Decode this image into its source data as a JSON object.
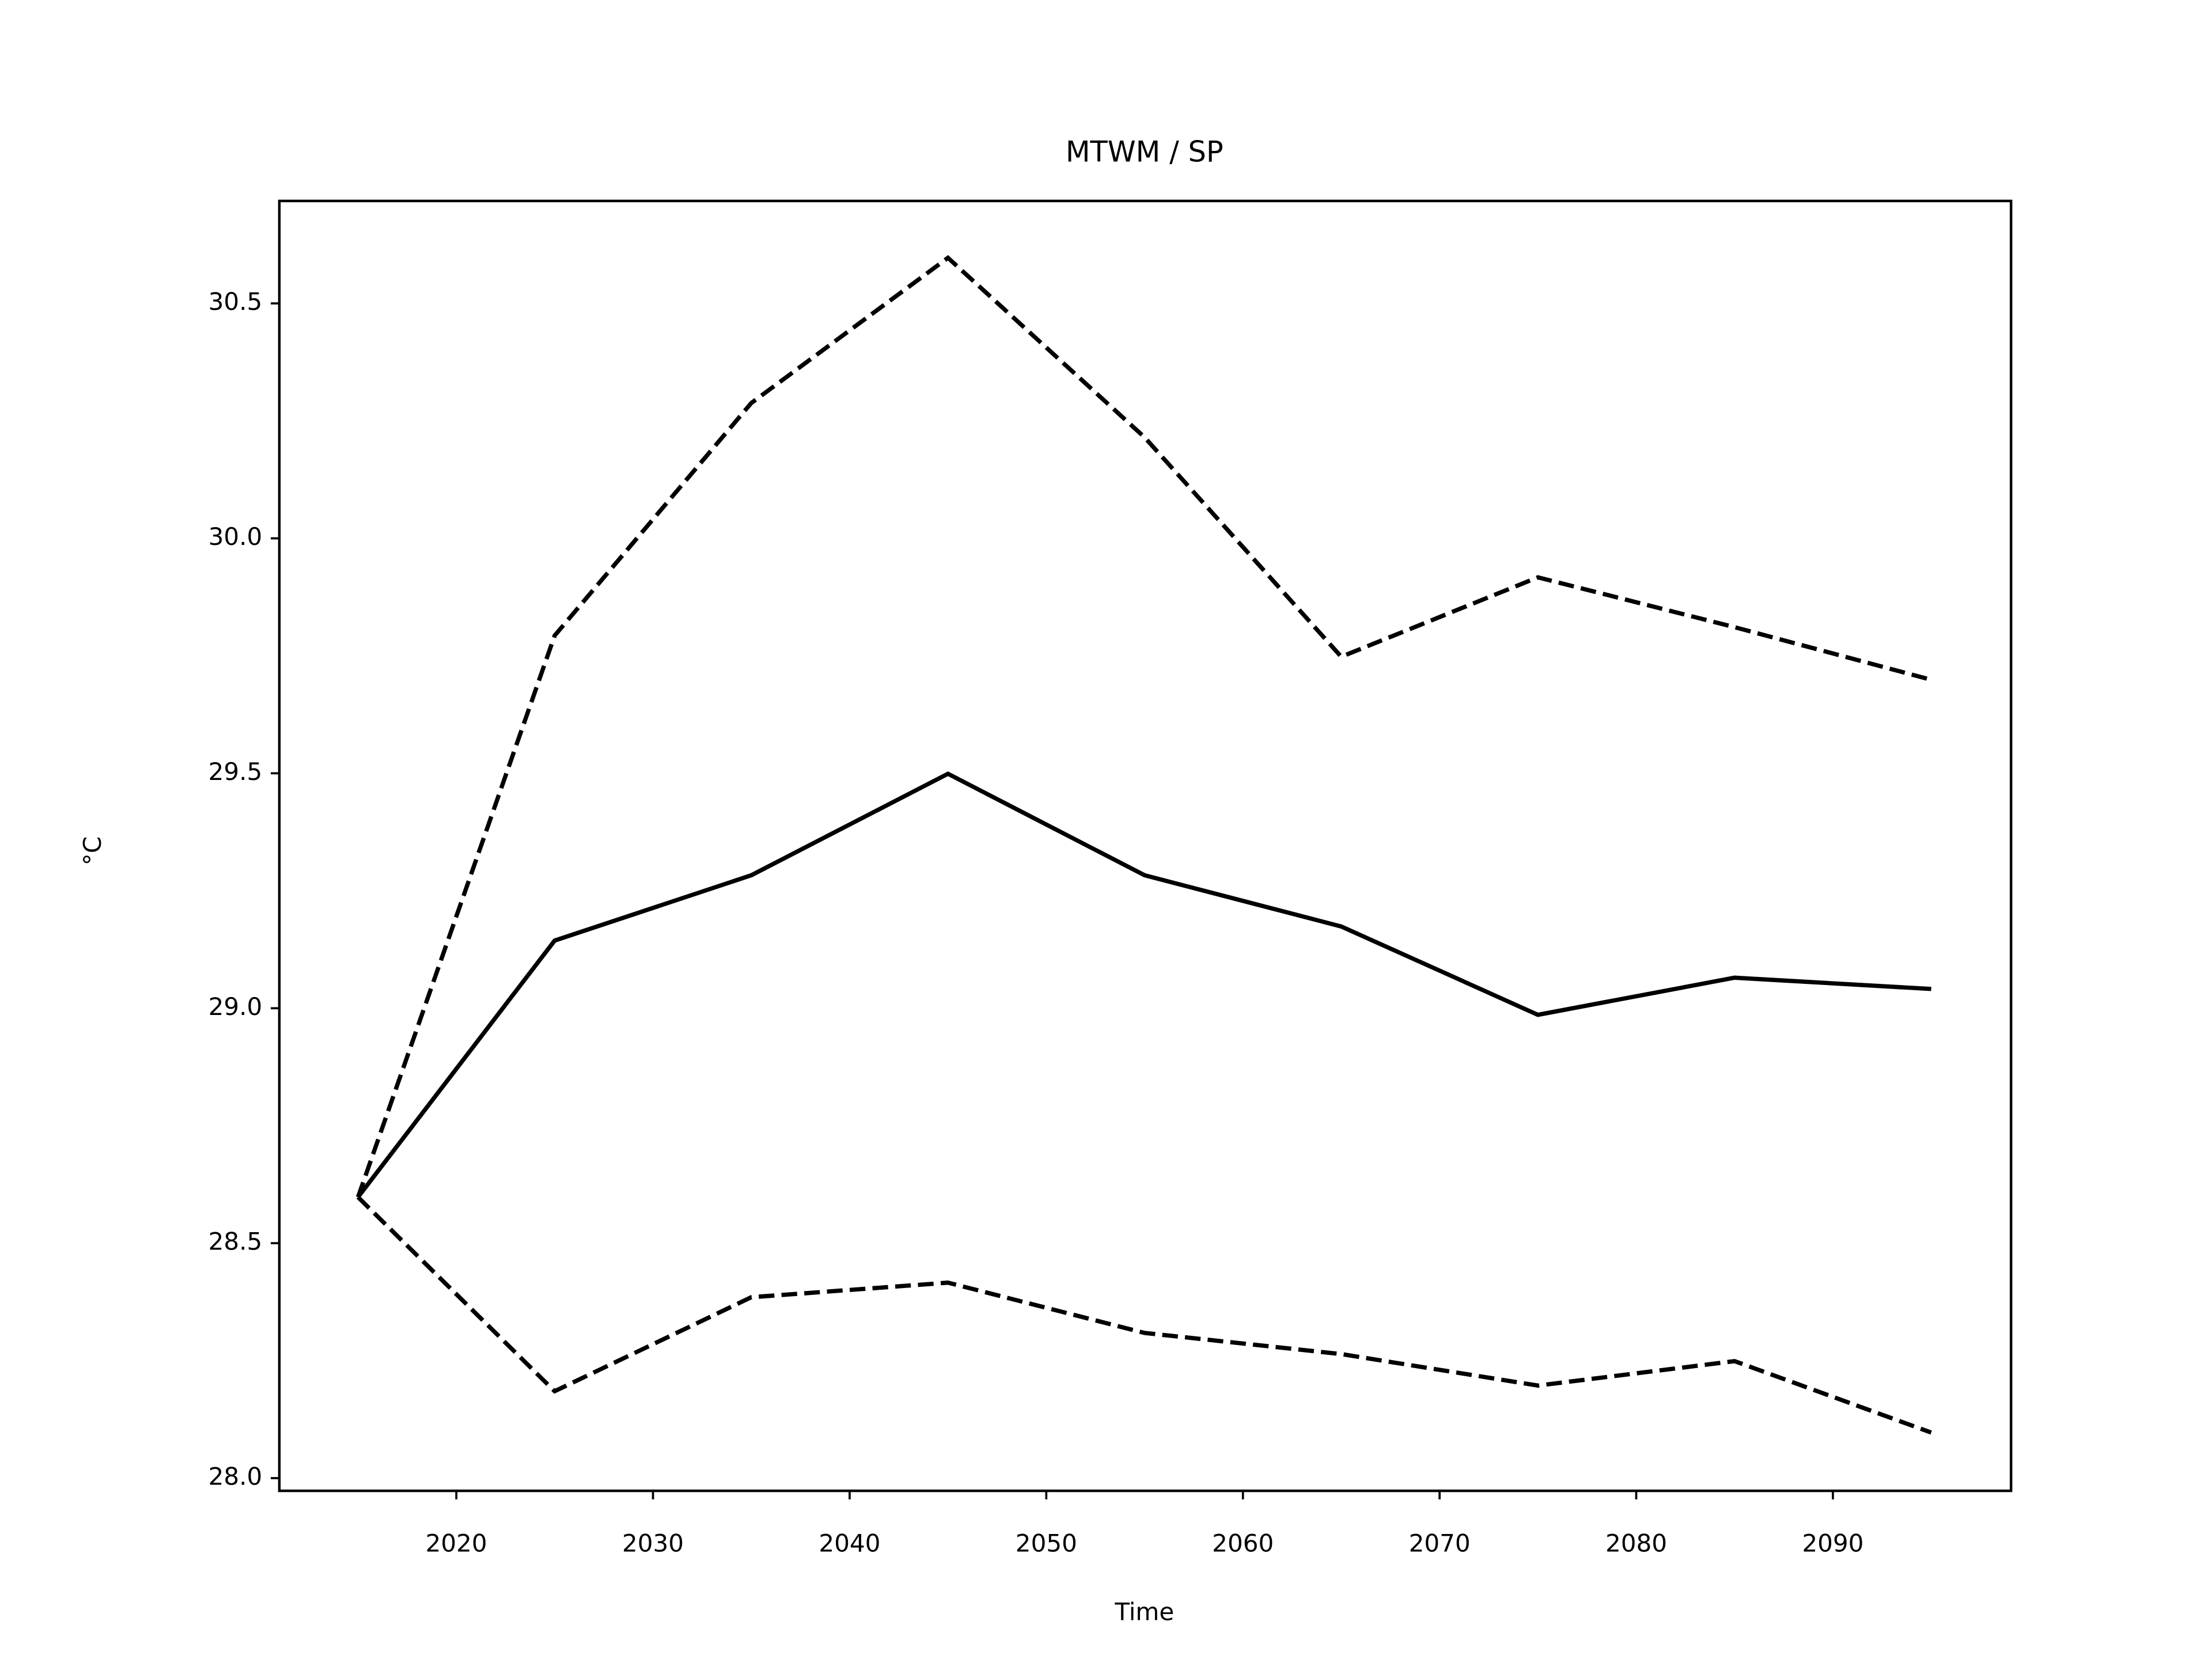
{
  "chart_data": {
    "type": "line",
    "title": "MTWM / SP",
    "xlabel": "Time",
    "ylabel": "°C",
    "x": [
      2015,
      2025,
      2035,
      2045,
      2055,
      2065,
      2075,
      2085,
      2095
    ],
    "series": [
      {
        "color": "#000000",
        "linestyle": "solid",
        "values": [
          28.598,
          29.144,
          29.283,
          29.499,
          29.283,
          29.174,
          28.986,
          29.065,
          29.041
        ]
      },
      {
        "color": "#000000",
        "linestyle": "dashed",
        "values": [
          28.598,
          29.793,
          30.288,
          30.597,
          30.215,
          29.748,
          29.917,
          29.811,
          29.699
        ]
      },
      {
        "color": "#000000",
        "linestyle": "dashed",
        "values": [
          28.598,
          28.185,
          28.385,
          28.416,
          28.309,
          28.264,
          28.197,
          28.249,
          28.097
        ]
      }
    ],
    "xlim": [
      2011,
      2099.06
    ],
    "xticks": [
      2020,
      2030,
      2040,
      2050,
      2060,
      2070,
      2080,
      2090
    ],
    "ylim": [
      27.973,
      30.718
    ],
    "yticks": [
      {
        "value": 28,
        "label": "28.0"
      },
      28.5,
      {
        "value": 29,
        "label": "29.0"
      },
      29.5,
      {
        "value": 30,
        "label": "30.0"
      },
      30.5
    ],
    "grid": false
  }
}
